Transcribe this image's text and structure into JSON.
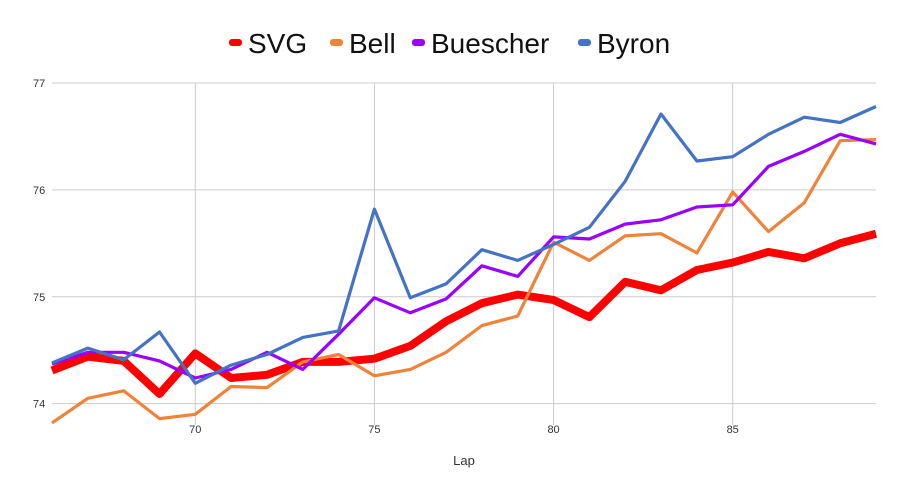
{
  "chart_data": {
    "type": "line",
    "xlabel": "Lap",
    "ylabel": "",
    "xlim": [
      66,
      89
    ],
    "ylim": [
      73.8,
      77
    ],
    "xticks": [
      70,
      75,
      80,
      85
    ],
    "yticks": [
      74,
      75,
      76,
      77
    ],
    "grid": true,
    "legend_position": "top-center",
    "x": [
      66,
      67,
      68,
      69,
      70,
      71,
      72,
      73,
      74,
      75,
      76,
      77,
      78,
      79,
      80,
      81,
      82,
      83,
      84,
      85,
      86,
      87,
      88,
      89
    ],
    "series": [
      {
        "name": "SVG",
        "color": "#ff0000",
        "values": [
          74.31,
          74.44,
          74.4,
          74.09,
          74.47,
          74.24,
          74.27,
          74.39,
          74.39,
          74.42,
          74.54,
          74.77,
          74.94,
          75.02,
          74.97,
          74.81,
          75.14,
          75.06,
          75.25,
          75.32,
          75.42,
          75.36,
          75.5,
          75.59
        ]
      },
      {
        "name": "Bell",
        "color": "#f0833a",
        "values": [
          73.82,
          74.05,
          74.12,
          73.86,
          73.9,
          74.16,
          74.15,
          74.39,
          74.46,
          74.26,
          74.32,
          74.48,
          74.73,
          74.82,
          75.51,
          75.34,
          75.57,
          75.59,
          75.41,
          75.98,
          75.61,
          75.88,
          76.46,
          76.47
        ]
      },
      {
        "name": "Buescher",
        "color": "#9900ff",
        "values": [
          74.37,
          74.48,
          74.48,
          74.4,
          74.24,
          74.32,
          74.48,
          74.32,
          74.65,
          74.99,
          74.85,
          74.98,
          75.29,
          75.19,
          75.56,
          75.54,
          75.68,
          75.72,
          75.84,
          75.86,
          76.22,
          76.36,
          76.52,
          76.43
        ]
      },
      {
        "name": "Byron",
        "color": "#4472c4",
        "values": [
          74.38,
          74.52,
          74.41,
          74.67,
          74.19,
          74.36,
          74.46,
          74.62,
          74.68,
          75.82,
          74.99,
          75.12,
          75.44,
          75.34,
          75.49,
          75.65,
          76.08,
          76.71,
          76.27,
          76.31,
          76.52,
          76.68,
          76.63,
          76.78
        ]
      }
    ]
  }
}
